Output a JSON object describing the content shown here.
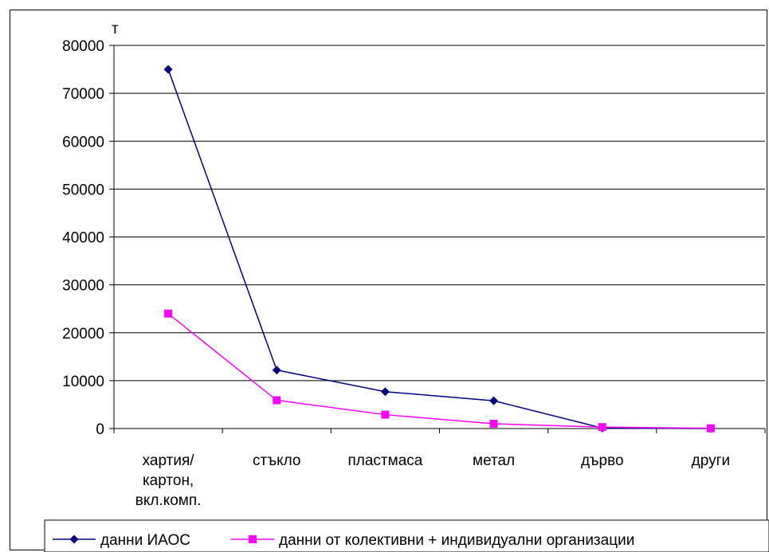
{
  "chart_data": {
    "type": "line",
    "title": "",
    "xlabel": "",
    "ylabel": "т",
    "categories": [
      [
        "хартия/",
        "картон,",
        "вкл.комп."
      ],
      [
        "стъкло"
      ],
      [
        "пластмаса"
      ],
      [
        "метал"
      ],
      [
        "дърво"
      ],
      [
        "други"
      ]
    ],
    "ylim": [
      0,
      80000
    ],
    "yticks": [
      "0",
      "10000",
      "20000",
      "30000",
      "40000",
      "50000",
      "60000",
      "70000",
      "80000"
    ],
    "grid": true,
    "legend_position": "bottom",
    "series": [
      {
        "name": "данни ИАОС",
        "values": [
          75000,
          12200,
          7700,
          5800,
          100,
          0
        ],
        "color": "#000080",
        "marker": "diamond"
      },
      {
        "name": "данни от колективни + индивидуални организации",
        "values": [
          24000,
          5900,
          2900,
          1000,
          300,
          50
        ],
        "color": "#ff00ff",
        "marker": "square"
      }
    ]
  }
}
